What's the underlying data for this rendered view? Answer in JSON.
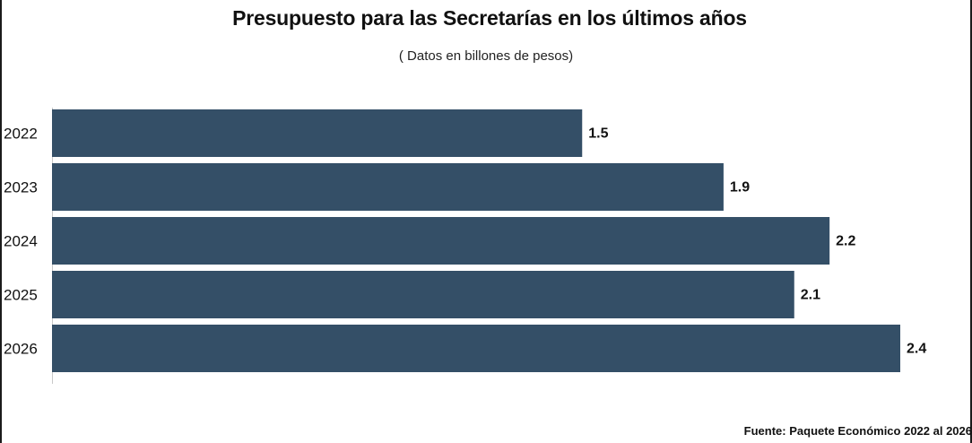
{
  "title": "Presupuesto para las Secretarías en los últimos años",
  "subtitle": "( Datos en billones de pesos)",
  "source": "Fuente: Paquete Económico 2022 al 2026",
  "colors": {
    "bar": "#344f67",
    "text": "#111111",
    "axis": "#c8c8c8"
  },
  "chart_data": {
    "type": "bar",
    "orientation": "horizontal",
    "title": "Presupuesto para las Secretarías en los últimos años",
    "subtitle": "( Datos en billones de pesos)",
    "categories": [
      "2022",
      "2023",
      "2024",
      "2025",
      "2026"
    ],
    "values": [
      1.5,
      1.9,
      2.2,
      2.1,
      2.4
    ],
    "value_labels": [
      "1.5",
      "1.9",
      "2.2",
      "2.1",
      "2.4"
    ],
    "xlabel": "",
    "ylabel": "",
    "xlim": [
      0,
      2.4
    ],
    "grid": false,
    "legend": "none"
  }
}
